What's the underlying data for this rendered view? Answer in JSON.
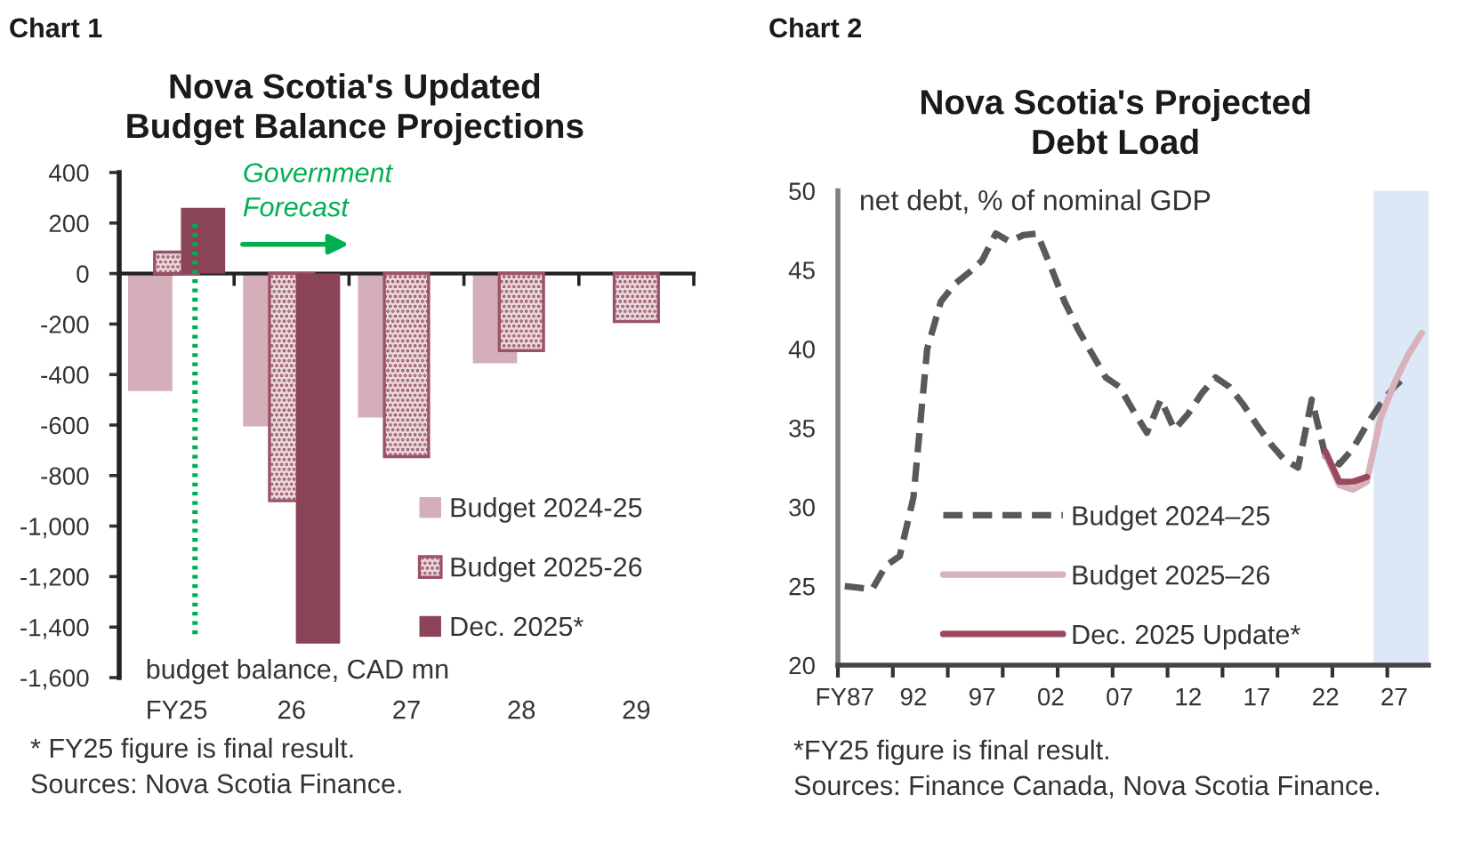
{
  "chart_data": [
    {
      "type": "bar",
      "title": "Nova Scotia's Updated\nBudget Balance Projections",
      "ylabel": "budget balance, CAD mn",
      "categories": [
        "FY25",
        "26",
        "27",
        "28",
        "29"
      ],
      "series": [
        {
          "name": "Budget 2024-25",
          "color": "#d4aeb8",
          "values": [
            -465,
            -605,
            -570,
            -355,
            null
          ]
        },
        {
          "name": "Budget 2025-26",
          "color": "#9c5266",
          "values": [
            85,
            -900,
            -725,
            -305,
            -190
          ]
        },
        {
          "name": "Dec. 2025*",
          "color": "#8b4357",
          "values": [
            260,
            -1465,
            null,
            null,
            null
          ]
        }
      ],
      "ylim": [
        -1600,
        400
      ],
      "yticks": [
        {
          "value": -1600,
          "label": "-1,600"
        },
        {
          "value": -1400,
          "label": "-1,400"
        },
        {
          "value": -1200,
          "label": "-1,200"
        },
        {
          "value": -1000,
          "label": "-1,000"
        },
        -800,
        -600,
        -400,
        -200,
        0,
        200,
        400
      ],
      "legend": "bottom right",
      "ref_lines": [
        {
          "axis": "x",
          "value": "FY25",
          "label": "Government Forecast",
          "color": "#00b050",
          "line_style": "dotted"
        }
      ],
      "annotations": [
        "Chart 1",
        "* FY25 figure is final result.",
        "Sources: Nova Scotia Finance."
      ]
    },
    {
      "type": "line",
      "title": "Nova Scotia's Projected\nDebt Load",
      "ylabel": "net debt, % of nominal GDP",
      "series": [
        {
          "name": "Budget 2024–25",
          "color": "#595959",
          "line_style": "dashed",
          "x": [
            1987,
            1988,
            1989,
            1990,
            1991,
            1992,
            1993,
            1994,
            1995,
            1996,
            1997,
            1998,
            1999,
            2000,
            2001,
            2002,
            2003,
            2004,
            2005,
            2006,
            2007,
            2008,
            2009,
            2010,
            2011,
            2012,
            2013,
            2014,
            2015,
            2016,
            2017,
            2018,
            2019,
            2020,
            2021,
            2022,
            2023,
            2024,
            2025,
            2026,
            2027,
            2028
          ],
          "values": [
            25.0,
            24.9,
            24.8,
            26.3,
            26.9,
            30.6,
            40.0,
            43.0,
            44.1,
            44.8,
            45.6,
            47.3,
            46.8,
            47.2,
            47.3,
            45.2,
            43.0,
            41.2,
            39.7,
            38.2,
            37.6,
            36.1,
            34.7,
            36.8,
            34.9,
            35.9,
            37.2,
            38.2,
            37.6,
            36.5,
            35.2,
            34.0,
            33.0,
            32.5,
            36.8,
            33.2,
            32.7,
            33.7,
            35.2,
            36.5,
            37.6,
            38.4
          ]
        },
        {
          "name": "Budget 2025–26",
          "color": "#d8b1bb",
          "line_style": "solid",
          "x": [
            2022,
            2023,
            2024,
            2025,
            2026,
            2027,
            2028,
            2029
          ],
          "values": [
            33.3,
            31.4,
            31.1,
            31.6,
            35.6,
            37.8,
            39.6,
            41.0
          ]
        },
        {
          "name": "Dec. 2025 Update*",
          "color": "#9b4a5e",
          "line_style": "solid",
          "x": [
            2022,
            2023,
            2024,
            2025
          ],
          "values": [
            33.5,
            31.6,
            31.6,
            31.9
          ]
        }
      ],
      "xlim": [
        1986.5,
        2029.5
      ],
      "xticks": [
        {
          "value": 1986.5,
          "label": null
        },
        {
          "value": 1987,
          "label": "FY87"
        },
        {
          "value": 1990.5,
          "label": null
        },
        {
          "value": 1992,
          "label": "92"
        },
        {
          "value": 1994.5,
          "label": null
        },
        {
          "value": 1997,
          "label": "97"
        },
        {
          "value": 1998.5,
          "label": null
        },
        {
          "value": 2002,
          "label": "02"
        },
        {
          "value": 2002.5,
          "label": null
        },
        {
          "value": 2006.5,
          "label": null
        },
        {
          "value": 2007,
          "label": "07"
        },
        {
          "value": 2010.5,
          "label": null
        },
        {
          "value": 2012,
          "label": "12"
        },
        {
          "value": 2014.5,
          "label": null
        },
        {
          "value": 2017,
          "label": "17"
        },
        {
          "value": 2018.5,
          "label": null
        },
        {
          "value": 2022,
          "label": "22"
        },
        {
          "value": 2022.5,
          "label": null
        },
        {
          "value": 2026.5,
          "label": null
        },
        {
          "value": 2027,
          "label": "27"
        }
      ],
      "ylim": [
        20,
        50
      ],
      "yticks": [
        20,
        25,
        30,
        35,
        40,
        45,
        50
      ],
      "legend": "bottom left",
      "bands": [
        {
          "axis": "x",
          "from": 2025.5,
          "to": 2029.5,
          "color": "#dce8f5"
        }
      ],
      "annotations": [
        "Chart 2",
        "*FY25 figure is final result.",
        "Sources: Finance Canada, Nova Scotia Finance."
      ]
    }
  ]
}
